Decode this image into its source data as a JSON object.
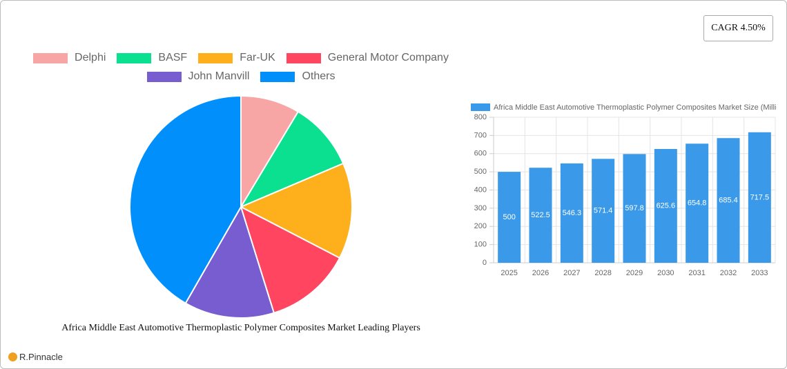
{
  "cagr": "CAGR 4.50%",
  "brand": "R.Pinnacle",
  "chart_data": [
    {
      "type": "pie",
      "title": "Africa Middle East Automotive Thermoplastic Polymer Composites Market Leading Players",
      "categories": [
        "Delphi",
        "BASF",
        "Far-UK",
        "General Motor Company",
        "John Manvill",
        "Others"
      ],
      "values": [
        8.6,
        10,
        14,
        12.6,
        13.1,
        41.7
      ],
      "colors": [
        "#f8a5a5",
        "#0ae08f",
        "#fdb01b",
        "#ff4560",
        "#775dd0",
        "#008ffb"
      ]
    },
    {
      "type": "bar",
      "series": [
        {
          "name": "Africa Middle East Automotive Thermoplastic Polymer Composites Market Size (Million)",
          "color": "#3a9ae9",
          "values": [
            500,
            522.5,
            546.3,
            571.4,
            597.8,
            625.6,
            654.8,
            685.4,
            717.5
          ]
        }
      ],
      "categories": [
        "2025",
        "2026",
        "2027",
        "2028",
        "2029",
        "2030",
        "2031",
        "2032",
        "2033"
      ],
      "ylim": [
        0,
        800
      ],
      "yticks": [
        0,
        100,
        200,
        300,
        400,
        500,
        600,
        700,
        800
      ],
      "grid": true
    }
  ]
}
